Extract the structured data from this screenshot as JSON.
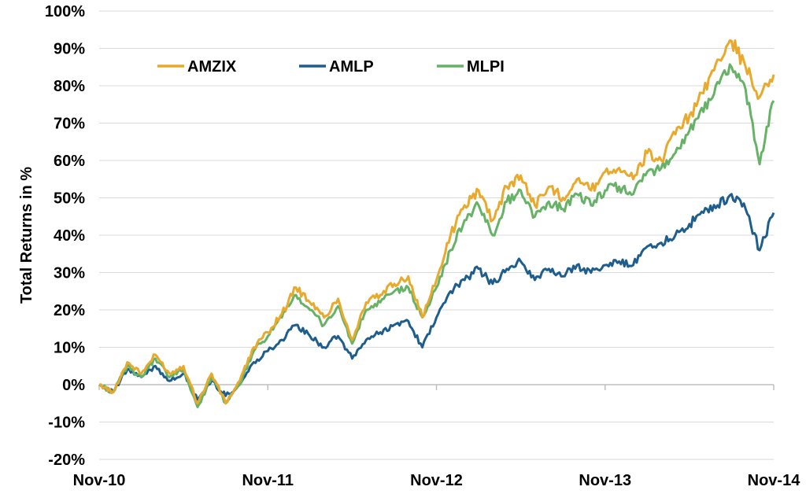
{
  "chart_data": {
    "type": "line",
    "title": "",
    "xlabel": "",
    "ylabel": "Total Returns in %",
    "x_tick_labels": [
      "Nov-10",
      "Nov-11",
      "Nov-12",
      "Nov-13",
      "Nov-14"
    ],
    "y_tick_labels": [
      "-20%",
      "-10%",
      "0%",
      "10%",
      "20%",
      "30%",
      "40%",
      "50%",
      "60%",
      "70%",
      "80%",
      "90%",
      "100%"
    ],
    "ylim": [
      -20,
      100
    ],
    "xlim": [
      "Nov-10",
      "Nov-14"
    ],
    "grid": true,
    "legend_position": "top-left",
    "x": [
      "Nov-10",
      "Dec-10",
      "Jan-11",
      "Feb-11",
      "Mar-11",
      "Apr-11",
      "May-11",
      "Jun-11",
      "Jul-11",
      "Aug-11",
      "Sep-11",
      "Oct-11",
      "Nov-11",
      "Dec-11",
      "Jan-12",
      "Feb-12",
      "Mar-12",
      "Apr-12",
      "May-12",
      "Jun-12",
      "Jul-12",
      "Aug-12",
      "Sep-12",
      "Oct-12",
      "Nov-12",
      "Dec-12",
      "Jan-13",
      "Feb-13",
      "Mar-13",
      "Apr-13",
      "May-13",
      "Jun-13",
      "Jul-13",
      "Aug-13",
      "Sep-13",
      "Oct-13",
      "Nov-13",
      "Dec-13",
      "Jan-14",
      "Feb-14",
      "Mar-14",
      "Apr-14",
      "May-14",
      "Jun-14",
      "Jul-14",
      "Aug-14",
      "Sep-14",
      "Oct-14",
      "Nov-14"
    ],
    "series": [
      {
        "name": "AMZIX",
        "color": "#E8A92C",
        "values": [
          0,
          -2,
          6,
          3,
          8,
          3,
          5,
          -5,
          3,
          -5,
          1,
          10,
          14,
          19,
          26,
          22,
          18,
          23,
          12,
          22,
          24,
          27,
          29,
          18,
          28,
          40,
          48,
          52,
          44,
          53,
          56,
          48,
          53,
          50,
          55,
          52,
          57,
          58,
          55,
          62,
          60,
          67,
          72,
          78,
          87,
          92,
          85,
          77,
          83
        ]
      },
      {
        "name": "AMLP",
        "color": "#1F5E8C",
        "values": [
          0,
          -2,
          4,
          2,
          5,
          1,
          3,
          -4,
          1,
          -3,
          0,
          6,
          9,
          12,
          16,
          13,
          10,
          13,
          7,
          12,
          14,
          16,
          17,
          10,
          18,
          25,
          28,
          31,
          27,
          31,
          33,
          28,
          31,
          29,
          32,
          30,
          32,
          33,
          32,
          37,
          38,
          40,
          43,
          46,
          48,
          51,
          47,
          36,
          46
        ]
      },
      {
        "name": "MLPI",
        "color": "#66B266",
        "values": [
          0,
          -2,
          5,
          2,
          7,
          2,
          4,
          -6,
          2,
          -5,
          0,
          9,
          13,
          18,
          24,
          20,
          16,
          21,
          11,
          20,
          22,
          25,
          26,
          18,
          26,
          36,
          44,
          48,
          40,
          49,
          52,
          45,
          49,
          47,
          51,
          48,
          52,
          53,
          51,
          57,
          58,
          62,
          68,
          73,
          81,
          85,
          79,
          59,
          76
        ]
      }
    ]
  }
}
